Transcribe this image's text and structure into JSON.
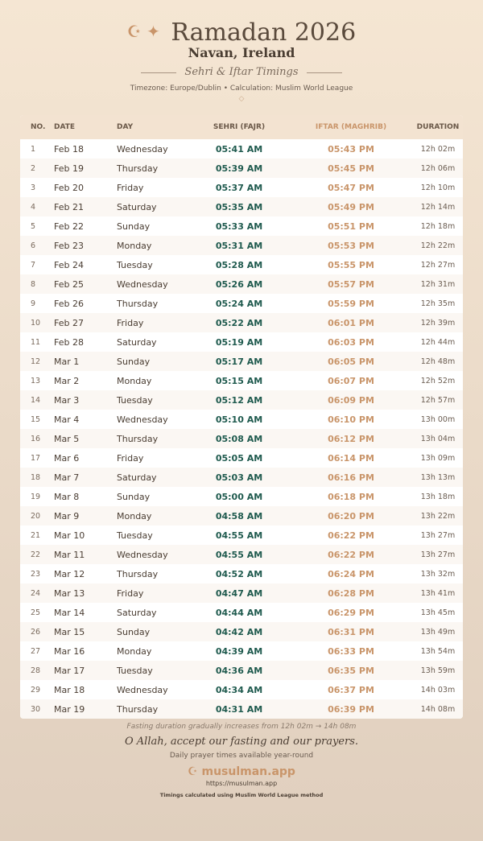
{
  "header": {
    "title": "Ramadan 2026",
    "location": "Navan, Ireland",
    "subtitle": "Sehri & Iftar Timings",
    "meta": "Timezone: Europe/Dublin • Calculation: Muslim World League",
    "icons": [
      "crescent-icon",
      "star-icon",
      "diamond-icon"
    ]
  },
  "table": {
    "columns": [
      "NO.",
      "DATE",
      "DAY",
      "SEHRI (FAJR)",
      "IFTAR (MAGHRIB)",
      "DURATION"
    ],
    "rows": [
      [
        "1",
        "Feb 18",
        "Wednesday",
        "05:41 AM",
        "05:43 PM",
        "12h 02m"
      ],
      [
        "2",
        "Feb 19",
        "Thursday",
        "05:39 AM",
        "05:45 PM",
        "12h 06m"
      ],
      [
        "3",
        "Feb 20",
        "Friday",
        "05:37 AM",
        "05:47 PM",
        "12h 10m"
      ],
      [
        "4",
        "Feb 21",
        "Saturday",
        "05:35 AM",
        "05:49 PM",
        "12h 14m"
      ],
      [
        "5",
        "Feb 22",
        "Sunday",
        "05:33 AM",
        "05:51 PM",
        "12h 18m"
      ],
      [
        "6",
        "Feb 23",
        "Monday",
        "05:31 AM",
        "05:53 PM",
        "12h 22m"
      ],
      [
        "7",
        "Feb 24",
        "Tuesday",
        "05:28 AM",
        "05:55 PM",
        "12h 27m"
      ],
      [
        "8",
        "Feb 25",
        "Wednesday",
        "05:26 AM",
        "05:57 PM",
        "12h 31m"
      ],
      [
        "9",
        "Feb 26",
        "Thursday",
        "05:24 AM",
        "05:59 PM",
        "12h 35m"
      ],
      [
        "10",
        "Feb 27",
        "Friday",
        "05:22 AM",
        "06:01 PM",
        "12h 39m"
      ],
      [
        "11",
        "Feb 28",
        "Saturday",
        "05:19 AM",
        "06:03 PM",
        "12h 44m"
      ],
      [
        "12",
        "Mar 1",
        "Sunday",
        "05:17 AM",
        "06:05 PM",
        "12h 48m"
      ],
      [
        "13",
        "Mar 2",
        "Monday",
        "05:15 AM",
        "06:07 PM",
        "12h 52m"
      ],
      [
        "14",
        "Mar 3",
        "Tuesday",
        "05:12 AM",
        "06:09 PM",
        "12h 57m"
      ],
      [
        "15",
        "Mar 4",
        "Wednesday",
        "05:10 AM",
        "06:10 PM",
        "13h 00m"
      ],
      [
        "16",
        "Mar 5",
        "Thursday",
        "05:08 AM",
        "06:12 PM",
        "13h 04m"
      ],
      [
        "17",
        "Mar 6",
        "Friday",
        "05:05 AM",
        "06:14 PM",
        "13h 09m"
      ],
      [
        "18",
        "Mar 7",
        "Saturday",
        "05:03 AM",
        "06:16 PM",
        "13h 13m"
      ],
      [
        "19",
        "Mar 8",
        "Sunday",
        "05:00 AM",
        "06:18 PM",
        "13h 18m"
      ],
      [
        "20",
        "Mar 9",
        "Monday",
        "04:58 AM",
        "06:20 PM",
        "13h 22m"
      ],
      [
        "21",
        "Mar 10",
        "Tuesday",
        "04:55 AM",
        "06:22 PM",
        "13h 27m"
      ],
      [
        "22",
        "Mar 11",
        "Wednesday",
        "04:55 AM",
        "06:22 PM",
        "13h 27m"
      ],
      [
        "23",
        "Mar 12",
        "Thursday",
        "04:52 AM",
        "06:24 PM",
        "13h 32m"
      ],
      [
        "24",
        "Mar 13",
        "Friday",
        "04:47 AM",
        "06:28 PM",
        "13h 41m"
      ],
      [
        "25",
        "Mar 14",
        "Saturday",
        "04:44 AM",
        "06:29 PM",
        "13h 45m"
      ],
      [
        "26",
        "Mar 15",
        "Sunday",
        "04:42 AM",
        "06:31 PM",
        "13h 49m"
      ],
      [
        "27",
        "Mar 16",
        "Monday",
        "04:39 AM",
        "06:33 PM",
        "13h 54m"
      ],
      [
        "28",
        "Mar 17",
        "Tuesday",
        "04:36 AM",
        "06:35 PM",
        "13h 59m"
      ],
      [
        "29",
        "Mar 18",
        "Wednesday",
        "04:34 AM",
        "06:37 PM",
        "14h 03m"
      ],
      [
        "30",
        "Mar 19",
        "Thursday",
        "04:31 AM",
        "06:39 PM",
        "14h 08m"
      ]
    ]
  },
  "footer": {
    "note": "Fasting duration gradually increases from 12h 02m → 14h 08m",
    "dua": "O Allah, accept our fasting and our prayers.",
    "tagline": "Daily prayer times available year-round",
    "brand": "musulman.app",
    "url": "https://musulman.app",
    "credit": "Timings calculated using Muslim World League method"
  },
  "colors": {
    "sehri": "#1f5a4e",
    "iftar": "#c9956a",
    "header_bg": "#f3e3d1"
  }
}
